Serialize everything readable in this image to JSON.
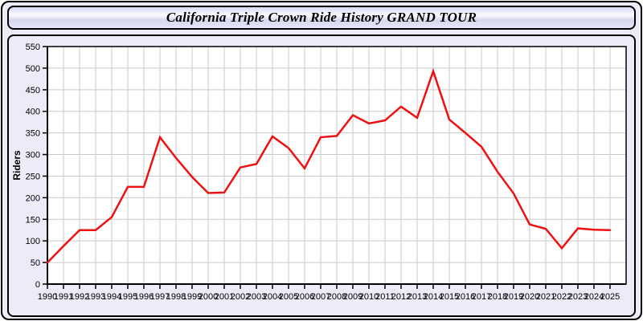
{
  "window": {
    "title": "California Triple Crown Ride History GRAND TOUR"
  },
  "colors": {
    "line": "#ee1111",
    "gridline": "#c9c9c9",
    "axis": "#000000",
    "plot_bg": "#ffffff",
    "panel_bg": "#ececf9",
    "label": "#000000"
  },
  "chart_data": {
    "type": "line",
    "title": "California Triple Crown Ride History GRAND TOUR",
    "xlabel": "",
    "ylabel": "Riders",
    "legend": "none",
    "grid": "on",
    "ylim": [
      0,
      550
    ],
    "ytick_step": 50,
    "ytick_labels": [
      "0",
      "50",
      "100",
      "150",
      "200",
      "250",
      "300",
      "350",
      "400",
      "450",
      "500",
      "550"
    ],
    "x": [
      1990,
      1991,
      1992,
      1993,
      1994,
      1995,
      1996,
      1997,
      1998,
      1999,
      2000,
      2001,
      2002,
      2003,
      2004,
      2005,
      2006,
      2007,
      2008,
      2009,
      2010,
      2011,
      2012,
      2013,
      2014,
      2015,
      2016,
      2017,
      2018,
      2019,
      2020,
      2021,
      2022,
      2023,
      2024,
      2025
    ],
    "series": [
      {
        "name": "Riders",
        "values": [
          50,
          88,
          125,
          125,
          155,
          225,
          225,
          340,
          292,
          248,
          211,
          212,
          270,
          278,
          342,
          315,
          268,
          340,
          343,
          391,
          372,
          379,
          411,
          385,
          493,
          381,
          350,
          318,
          260,
          210,
          138,
          128,
          83,
          129,
          126,
          125
        ]
      }
    ]
  }
}
